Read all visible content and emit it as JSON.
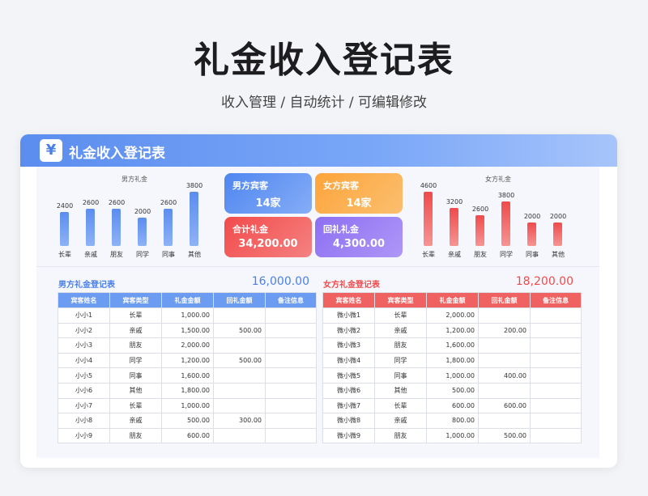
{
  "hero": {
    "title": "礼金收入登记表",
    "subtitle": "收入管理 / 自动统计 /  可编辑修改"
  },
  "card": {
    "icon": "yen-icon",
    "icon_glyph": "¥",
    "title": "礼金收入登记表"
  },
  "colors": {
    "male_accent": "#4a7fe8",
    "female_accent": "#ef4b4b"
  },
  "chart_data": [
    {
      "type": "bar",
      "title": "男方礼金",
      "categories": [
        "长辈",
        "亲戚",
        "朋友",
        "同学",
        "同事",
        "其他"
      ],
      "values": [
        2400,
        2600,
        2600,
        2000,
        2600,
        3800
      ],
      "ylim": [
        0,
        4000
      ],
      "grid": false,
      "color": "#5b8def"
    },
    {
      "type": "bar",
      "title": "女方礼金",
      "categories": [
        "长辈",
        "亲戚",
        "朋友",
        "同学",
        "同事",
        "其他"
      ],
      "values": [
        4600,
        3200,
        2600,
        3800,
        2000,
        2000
      ],
      "ylim": [
        0,
        4800
      ],
      "grid": false,
      "color": "#ef4b4b"
    }
  ],
  "summary": {
    "male_guests": {
      "label": "男方宾客",
      "value": "14家"
    },
    "female_guests": {
      "label": "女方宾客",
      "value": "14家"
    },
    "total_gift": {
      "label": "合计礼金",
      "value": "34,200.00"
    },
    "return_gift": {
      "label": "回礼礼金",
      "value": "4,300.00"
    }
  },
  "male_register": {
    "title": "男方礼金登记表",
    "total": "16,000.00",
    "headers": [
      "宾客姓名",
      "宾客类型",
      "礼金金额",
      "回礼金额",
      "备注信息"
    ],
    "rows": [
      [
        "小小1",
        "长辈",
        "1,000.00",
        "",
        ""
      ],
      [
        "小小2",
        "亲戚",
        "1,500.00",
        "500.00",
        ""
      ],
      [
        "小小3",
        "朋友",
        "2,000.00",
        "",
        ""
      ],
      [
        "小小4",
        "同学",
        "1,200.00",
        "500.00",
        ""
      ],
      [
        "小小5",
        "同事",
        "1,600.00",
        "",
        ""
      ],
      [
        "小小6",
        "其他",
        "1,800.00",
        "",
        ""
      ],
      [
        "小小7",
        "长辈",
        "1,000.00",
        "",
        ""
      ],
      [
        "小小8",
        "亲戚",
        "500.00",
        "300.00",
        ""
      ],
      [
        "小小9",
        "朋友",
        "600.00",
        "",
        ""
      ]
    ]
  },
  "female_register": {
    "title": "女方礼金登记表",
    "total": "18,200.00",
    "headers": [
      "宾客姓名",
      "宾客类型",
      "礼金金额",
      "回礼金额",
      "备注信息"
    ],
    "rows": [
      [
        "微小微1",
        "长辈",
        "2,000.00",
        "",
        ""
      ],
      [
        "微小微2",
        "亲戚",
        "1,200.00",
        "200.00",
        ""
      ],
      [
        "微小微3",
        "朋友",
        "1,600.00",
        "",
        ""
      ],
      [
        "微小微4",
        "同学",
        "1,800.00",
        "",
        ""
      ],
      [
        "微小微5",
        "同事",
        "1,000.00",
        "400.00",
        ""
      ],
      [
        "微小微6",
        "其他",
        "500.00",
        "",
        ""
      ],
      [
        "微小微7",
        "长辈",
        "600.00",
        "600.00",
        ""
      ],
      [
        "微小微8",
        "亲戚",
        "800.00",
        "",
        ""
      ],
      [
        "微小微9",
        "朋友",
        "1,000.00",
        "500.00",
        ""
      ]
    ]
  }
}
